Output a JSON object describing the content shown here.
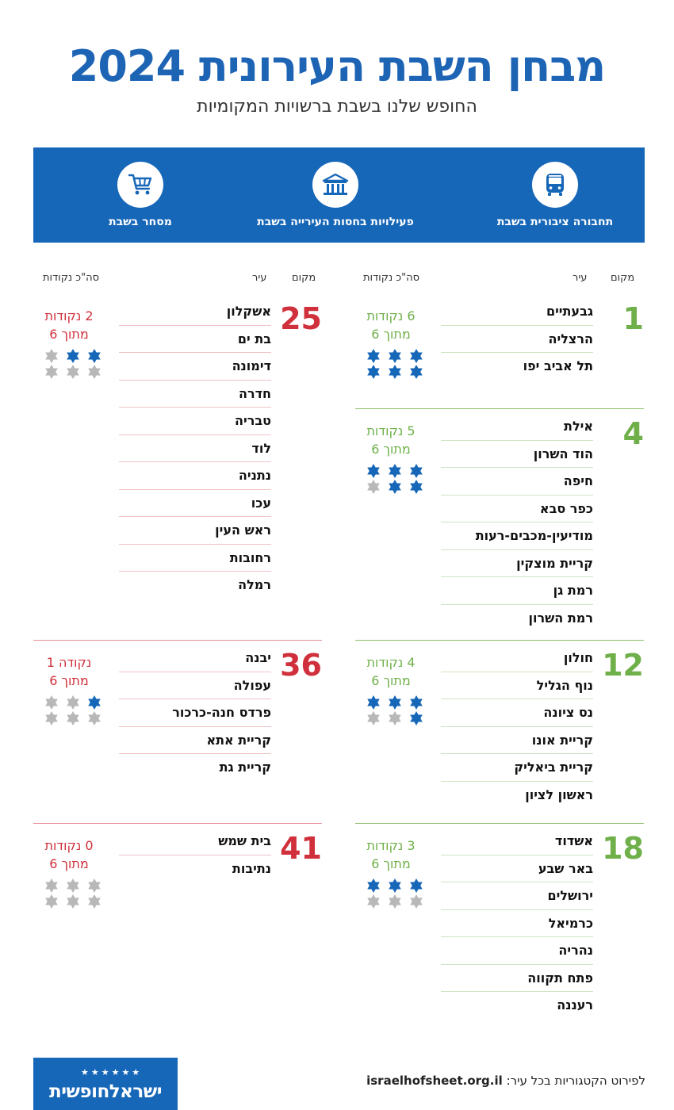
{
  "header": {
    "title": "מבחן השבת העירונית 2024",
    "subtitle": "החופש שלנו בשבת ברשויות המקומיות"
  },
  "categories": [
    {
      "label": "תחבורה ציבורית בשבת",
      "icon": "bus-icon"
    },
    {
      "label": "פעילויות בחסות העירייה בשבת",
      "icon": "municipal-building-icon"
    },
    {
      "label": "מסחר בשבת",
      "icon": "shopping-cart-icon"
    }
  ],
  "column_headers": {
    "rank": "מקום",
    "city": "עיר",
    "total": "סה\"כ נקודות"
  },
  "colors": {
    "blue": "#1767b8",
    "green": "#6fb04a",
    "red": "#d0303b",
    "gray_star": "#b8b8b8"
  },
  "groups": [
    {
      "rank": "1",
      "score_line1": "6 נקודות",
      "score_line2": "מתוך 6",
      "points": 6,
      "cities": [
        "גבעתיים",
        "הרצליה",
        "תל אביב יפו"
      ]
    },
    {
      "rank": "4",
      "score_line1": "5 נקודות",
      "score_line2": "מתוך 6",
      "points": 5,
      "cities": [
        "אילת",
        "הוד השרון",
        "חיפה",
        "כפר סבא",
        "מודיעין-מכבים-רעות",
        "קריית מוצקין",
        "רמת גן",
        "רמת השרון"
      ]
    },
    {
      "rank": "12",
      "score_line1": "4 נקודות",
      "score_line2": "מתוך 6",
      "points": 4,
      "cities": [
        "חולון",
        "נוף הגליל",
        "נס ציונה",
        "קריית אונו",
        "קריית ביאליק",
        "ראשון לציון"
      ]
    },
    {
      "rank": "18",
      "score_line1": "3 נקודות",
      "score_line2": "מתוך 6",
      "points": 3,
      "cities": [
        "אשדוד",
        "באר שבע",
        "ירושלים",
        "כרמיאל",
        "נהריה",
        "פתח תקווה",
        "רעננה"
      ]
    },
    {
      "rank": "25",
      "score_line1": "2 נקודות",
      "score_line2": "מתוך 6",
      "points": 2,
      "cities": [
        "אשקלון",
        "בת ים",
        "דימונה",
        "חדרה",
        "טבריה",
        "לוד",
        "נתניה",
        "עכו",
        "ראש העין",
        "רחובות",
        "רמלה"
      ]
    },
    {
      "rank": "36",
      "score_line1": "נקודה 1",
      "score_line2": "מתוך 6",
      "points": 1,
      "cities": [
        "יבנה",
        "עפולה",
        "פרדס חנה-כרכור",
        "קריית אתא",
        "קריית גת"
      ]
    },
    {
      "rank": "41",
      "score_line1": "0 נקודות",
      "score_line2": "מתוך 6",
      "points": 0,
      "cities": [
        "בית שמש",
        "נתיבות"
      ]
    }
  ],
  "footer": {
    "label": "לפירוט הקטגוריות בכל עיר:",
    "url": "israelhofsheet.org.il",
    "logo_text": "ישראלחופשית"
  }
}
